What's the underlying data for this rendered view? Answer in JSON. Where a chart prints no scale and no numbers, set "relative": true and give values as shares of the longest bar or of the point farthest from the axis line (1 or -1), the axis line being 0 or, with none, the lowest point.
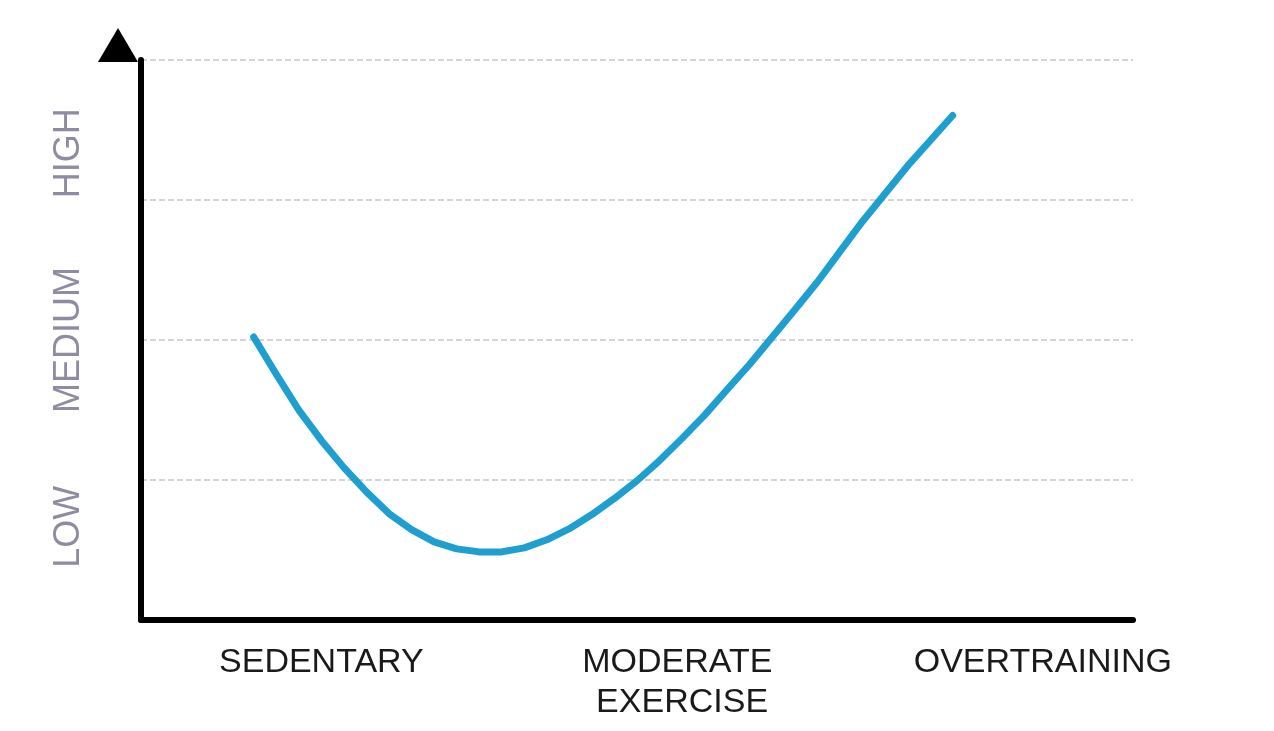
{
  "chart_data": {
    "type": "line",
    "relative": true,
    "grid": "y",
    "marker": "none",
    "line_style": "solid",
    "categories": [
      null,
      null,
      null,
      null,
      null,
      null,
      null,
      null,
      "SEDENTARY",
      null,
      null,
      null,
      null,
      null,
      null,
      null,
      null,
      null,
      null,
      null,
      null,
      null,
      null,
      null,
      "MODERATE EXERCISE",
      null,
      null,
      null,
      null,
      null,
      null,
      null,
      null,
      null,
      null,
      null,
      null,
      null,
      null,
      null,
      "OVERTRAINING",
      null,
      null,
      null,
      null
    ],
    "series": [
      {
        "color": "#1e9fd0",
        "values": [
          null,
          null,
          null,
          null,
          null,
          0.561,
          0.487,
          0.416,
          0.356,
          0.302,
          0.254,
          0.211,
          0.179,
          0.155,
          0.141,
          0.135,
          0.135,
          0.143,
          0.159,
          0.181,
          0.209,
          0.241,
          0.276,
          0.316,
          0.36,
          0.406,
          0.457,
          0.507,
          0.561,
          0.615,
          0.67,
          0.73,
          0.79,
          0.845,
          0.9,
          0.95,
          1.0,
          null,
          null,
          null,
          null,
          null,
          null,
          null,
          null
        ]
      }
    ],
    "annotations": [
      "LOW",
      "MEDIUM",
      "HIGH"
    ]
  }
}
